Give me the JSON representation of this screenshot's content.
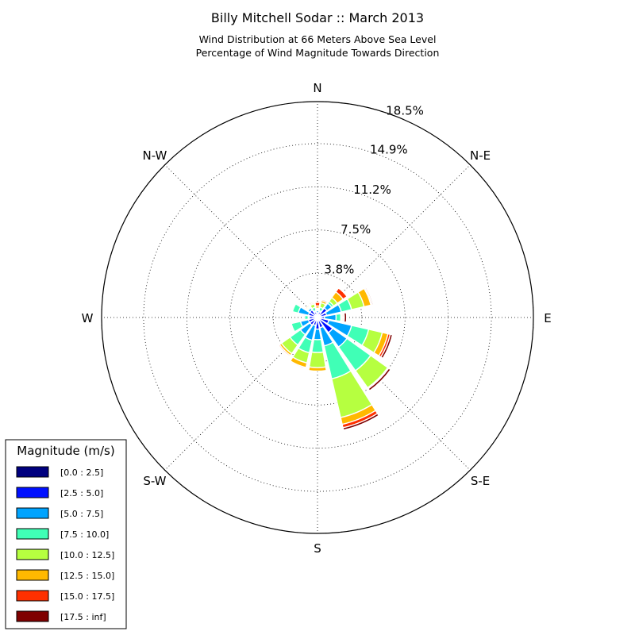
{
  "chart_data": {
    "type": "windrose",
    "title": "Billy Mitchell Sodar :: March 2013",
    "subtitle_lines": [
      "Wind Distribution at 66 Meters Above Sea Level",
      "Percentage of Wind Magnitude Towards Direction"
    ],
    "direction_labels": [
      "N",
      "N-E",
      "E",
      "S-E",
      "S",
      "S-W",
      "W",
      "N-W"
    ],
    "radial_tick_labels": [
      "3.8%",
      "7.5%",
      "11.2%",
      "14.9%",
      "18.5%"
    ],
    "radial_ticks": [
      3.8,
      7.5,
      11.2,
      14.9,
      18.5
    ],
    "rmax": 18.5,
    "legend": {
      "title": "Magnitude (m/s)",
      "placement": "bottom-left",
      "bins": [
        "[0.0 : 2.5]",
        "[2.5 : 5.0]",
        "[5.0 : 7.5]",
        "[7.5 : 10.0]",
        "[10.0 : 12.5]",
        "[12.5 : 15.0]",
        "[15.0 : 17.5]",
        "[17.5 : inf]"
      ]
    },
    "colors": [
      "#00007f",
      "#0010ff",
      "#00a4ff",
      "#40ffb6",
      "#b6ff40",
      "#ffb900",
      "#ff3000",
      "#7f0000"
    ],
    "directions_deg": [
      0,
      22.5,
      45,
      67.5,
      90,
      112.5,
      135,
      157.5,
      180,
      202.5,
      225,
      247.5,
      270,
      292.5,
      315,
      337.5
    ],
    "series": [
      {
        "name": "[0.0 : 2.5]",
        "values": [
          0.2,
          0.2,
          0.2,
          0.2,
          0.2,
          0.2,
          0.2,
          0.2,
          0.2,
          0.2,
          0.2,
          0.2,
          0.2,
          0.2,
          0.2,
          0.2
        ]
      },
      {
        "name": "[2.5 : 5.0]",
        "values": [
          0.2,
          0.3,
          0.8,
          0.6,
          0.4,
          0.8,
          1.4,
          0.7,
          0.8,
          0.5,
          0.6,
          0.6,
          0.5,
          0.6,
          0.6,
          0.3
        ]
      },
      {
        "name": "[5.0 : 7.5]",
        "values": [
          0.2,
          0.1,
          0.5,
          1.3,
          1.0,
          2.0,
          1.5,
          1.6,
          0.9,
          1.3,
          1.0,
          0.7,
          0.1,
          0.9,
          0.2,
          0.1
        ]
      },
      {
        "name": "[7.5 : 10.0]",
        "values": [
          0.1,
          0.3,
          0.2,
          0.9,
          0.4,
          1.5,
          2.5,
          2.9,
          1.1,
          1.1,
          1.1,
          0.8,
          0.3,
          0.5,
          0.1,
          0.3
        ]
      },
      {
        "name": "[10.0 : 12.5]",
        "values": [
          0.1,
          0.4,
          0.4,
          1.1,
          0.1,
          1.2,
          1.8,
          3.4,
          1.3,
          0.9,
          0.9,
          0.0,
          0.0,
          0.0,
          0.1,
          0.3
        ]
      },
      {
        "name": "[12.5 : 15.0]",
        "values": [
          0.2,
          0.2,
          0.6,
          0.6,
          0.1,
          0.5,
          0.0,
          0.6,
          0.3,
          0.4,
          0.2,
          0.0,
          0.0,
          0.0,
          0.1,
          0.1
        ]
      },
      {
        "name": "[15.0 : 17.5]",
        "values": [
          0.3,
          0.1,
          0.4,
          0.1,
          0.1,
          0.2,
          0.1,
          0.3,
          0.0,
          0.1,
          0.1,
          0.0,
          0.0,
          0.0,
          0.0,
          0.1
        ]
      },
      {
        "name": "[17.5 : inf]",
        "values": [
          0.0,
          0.0,
          0.0,
          0.1,
          0.2,
          0.2,
          0.2,
          0.2,
          0.0,
          0.0,
          0.0,
          0.0,
          0.0,
          0.0,
          0.0,
          0.0
        ]
      }
    ]
  }
}
